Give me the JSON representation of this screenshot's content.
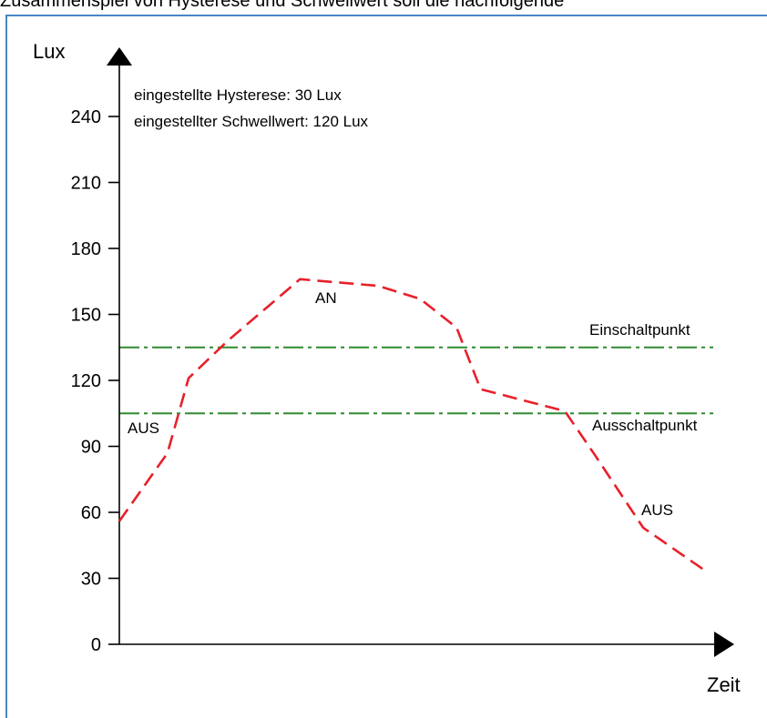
{
  "header": {
    "text": "Zusammenspiel von Hysterese und Schwellwert soll die nachfolgende"
  },
  "chart_data": {
    "type": "line",
    "xlabel": "Zeit",
    "ylabel": "Lux",
    "ylim": [
      0,
      270
    ],
    "yticks": [
      0,
      30,
      60,
      90,
      120,
      150,
      180,
      210,
      240
    ],
    "grid": false,
    "notes": [
      "eingestellte Hysterese: 30 Lux",
      "eingestellter Schwellwert: 120 Lux"
    ],
    "series": [
      {
        "style": "dashed",
        "color": "#e8202a",
        "x": [
          0,
          0.08,
          0.115,
          0.18,
          0.3,
          0.43,
          0.5,
          0.56,
          0.6,
          0.74,
          0.79,
          0.87,
          0.97
        ],
        "y": [
          56,
          87,
          121,
          138,
          166,
          163,
          157,
          144,
          116,
          106,
          86,
          53,
          34
        ]
      }
    ],
    "thresholds": [
      {
        "label": "Einschaltpunkt",
        "value": 135,
        "color": "#2e8b2e",
        "style": "dash-dot"
      },
      {
        "label": "Ausschaltpunkt",
        "value": 105,
        "color": "#2e8b2e",
        "style": "dash-dot"
      }
    ],
    "annotations": [
      {
        "text": "AN"
      },
      {
        "text": "AUS"
      },
      {
        "text": "AUS"
      }
    ]
  }
}
